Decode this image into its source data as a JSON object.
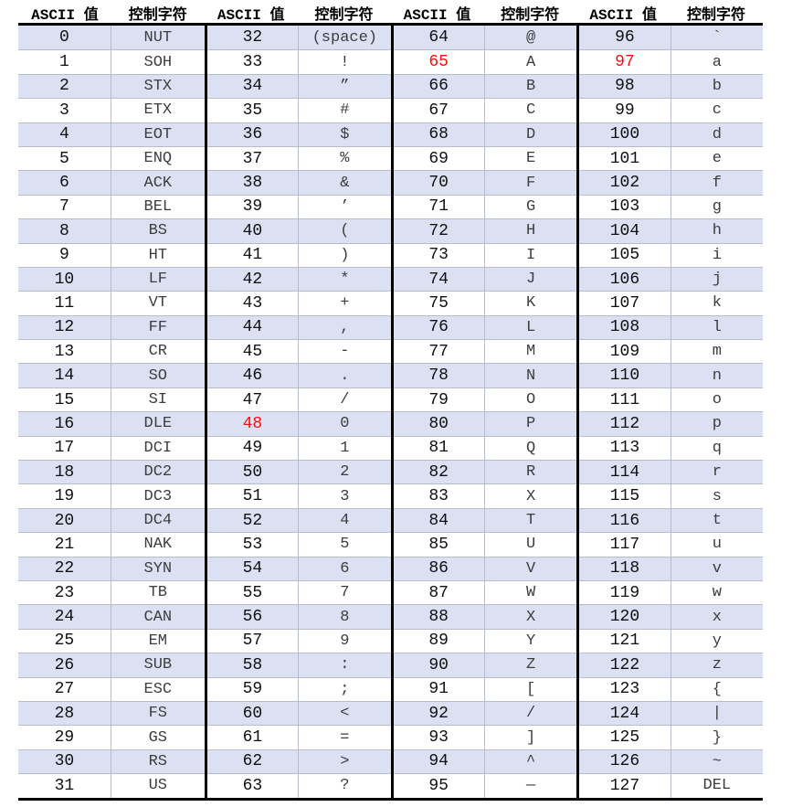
{
  "colors": {
    "red": "#f90f0f",
    "stripe": "#dbe1f3",
    "grid_line": "#b6bcc9",
    "border": "#000000"
  },
  "table": {
    "header": {
      "value_label": "ASCII 值",
      "char_label": "控制字符"
    },
    "groups": [
      {
        "rows": [
          {
            "v": "0",
            "c": "NUT"
          },
          {
            "v": "1",
            "c": "SOH"
          },
          {
            "v": "2",
            "c": "STX"
          },
          {
            "v": "3",
            "c": "ETX"
          },
          {
            "v": "4",
            "c": "EOT"
          },
          {
            "v": "5",
            "c": "ENQ"
          },
          {
            "v": "6",
            "c": "ACK"
          },
          {
            "v": "7",
            "c": "BEL"
          },
          {
            "v": "8",
            "c": "BS"
          },
          {
            "v": "9",
            "c": "HT"
          },
          {
            "v": "10",
            "c": "LF"
          },
          {
            "v": "11",
            "c": "VT"
          },
          {
            "v": "12",
            "c": "FF"
          },
          {
            "v": "13",
            "c": "CR"
          },
          {
            "v": "14",
            "c": "SO"
          },
          {
            "v": "15",
            "c": "SI"
          },
          {
            "v": "16",
            "c": "DLE"
          },
          {
            "v": "17",
            "c": "DCI"
          },
          {
            "v": "18",
            "c": "DC2"
          },
          {
            "v": "19",
            "c": "DC3"
          },
          {
            "v": "20",
            "c": "DC4"
          },
          {
            "v": "21",
            "c": "NAK"
          },
          {
            "v": "22",
            "c": "SYN"
          },
          {
            "v": "23",
            "c": "TB"
          },
          {
            "v": "24",
            "c": "CAN"
          },
          {
            "v": "25",
            "c": "EM"
          },
          {
            "v": "26",
            "c": "SUB"
          },
          {
            "v": "27",
            "c": "ESC"
          },
          {
            "v": "28",
            "c": "FS"
          },
          {
            "v": "29",
            "c": "GS"
          },
          {
            "v": "30",
            "c": "RS"
          },
          {
            "v": "31",
            "c": "US"
          }
        ]
      },
      {
        "rows": [
          {
            "v": "32",
            "c": "(space)"
          },
          {
            "v": "33",
            "c": "!"
          },
          {
            "v": "34",
            "c": "”"
          },
          {
            "v": "35",
            "c": "#"
          },
          {
            "v": "36",
            "c": "$"
          },
          {
            "v": "37",
            "c": "%"
          },
          {
            "v": "38",
            "c": "&"
          },
          {
            "v": "39",
            "c": "’"
          },
          {
            "v": "40",
            "c": "("
          },
          {
            "v": "41",
            "c": ")"
          },
          {
            "v": "42",
            "c": "*"
          },
          {
            "v": "43",
            "c": "+"
          },
          {
            "v": "44",
            "c": ","
          },
          {
            "v": "45",
            "c": "-"
          },
          {
            "v": "46",
            "c": "."
          },
          {
            "v": "47",
            "c": "/"
          },
          {
            "v": "48",
            "c": "0",
            "red": true
          },
          {
            "v": "49",
            "c": "1"
          },
          {
            "v": "50",
            "c": "2"
          },
          {
            "v": "51",
            "c": "3"
          },
          {
            "v": "52",
            "c": "4"
          },
          {
            "v": "53",
            "c": "5"
          },
          {
            "v": "54",
            "c": "6"
          },
          {
            "v": "55",
            "c": "7"
          },
          {
            "v": "56",
            "c": "8"
          },
          {
            "v": "57",
            "c": "9"
          },
          {
            "v": "58",
            "c": ":"
          },
          {
            "v": "59",
            "c": ";"
          },
          {
            "v": "60",
            "c": "<"
          },
          {
            "v": "61",
            "c": "="
          },
          {
            "v": "62",
            "c": ">"
          },
          {
            "v": "63",
            "c": "?"
          }
        ]
      },
      {
        "rows": [
          {
            "v": "64",
            "c": "@"
          },
          {
            "v": "65",
            "c": "A",
            "red": true
          },
          {
            "v": "66",
            "c": "B"
          },
          {
            "v": "67",
            "c": "C"
          },
          {
            "v": "68",
            "c": "D"
          },
          {
            "v": "69",
            "c": "E"
          },
          {
            "v": "70",
            "c": "F"
          },
          {
            "v": "71",
            "c": "G"
          },
          {
            "v": "72",
            "c": "H"
          },
          {
            "v": "73",
            "c": "I"
          },
          {
            "v": "74",
            "c": "J"
          },
          {
            "v": "75",
            "c": "K"
          },
          {
            "v": "76",
            "c": "L"
          },
          {
            "v": "77",
            "c": "M"
          },
          {
            "v": "78",
            "c": "N"
          },
          {
            "v": "79",
            "c": "O"
          },
          {
            "v": "80",
            "c": "P"
          },
          {
            "v": "81",
            "c": "Q"
          },
          {
            "v": "82",
            "c": "R"
          },
          {
            "v": "83",
            "c": "X"
          },
          {
            "v": "84",
            "c": "T"
          },
          {
            "v": "85",
            "c": "U"
          },
          {
            "v": "86",
            "c": "V"
          },
          {
            "v": "87",
            "c": "W"
          },
          {
            "v": "88",
            "c": "X"
          },
          {
            "v": "89",
            "c": "Y"
          },
          {
            "v": "90",
            "c": "Z"
          },
          {
            "v": "91",
            "c": "["
          },
          {
            "v": "92",
            "c": "/"
          },
          {
            "v": "93",
            "c": "]"
          },
          {
            "v": "94",
            "c": "^"
          },
          {
            "v": "95",
            "c": "—"
          }
        ]
      },
      {
        "rows": [
          {
            "v": "96",
            "c": "`"
          },
          {
            "v": "97",
            "c": "a",
            "red": true
          },
          {
            "v": "98",
            "c": "b"
          },
          {
            "v": "99",
            "c": "c"
          },
          {
            "v": "100",
            "c": "d"
          },
          {
            "v": "101",
            "c": "e"
          },
          {
            "v": "102",
            "c": "f"
          },
          {
            "v": "103",
            "c": "g"
          },
          {
            "v": "104",
            "c": "h"
          },
          {
            "v": "105",
            "c": "i"
          },
          {
            "v": "106",
            "c": "j"
          },
          {
            "v": "107",
            "c": "k"
          },
          {
            "v": "108",
            "c": "l"
          },
          {
            "v": "109",
            "c": "m"
          },
          {
            "v": "110",
            "c": "n"
          },
          {
            "v": "111",
            "c": "o"
          },
          {
            "v": "112",
            "c": "p"
          },
          {
            "v": "113",
            "c": "q"
          },
          {
            "v": "114",
            "c": "r"
          },
          {
            "v": "115",
            "c": "s"
          },
          {
            "v": "116",
            "c": "t"
          },
          {
            "v": "117",
            "c": "u"
          },
          {
            "v": "118",
            "c": "v"
          },
          {
            "v": "119",
            "c": "w"
          },
          {
            "v": "120",
            "c": "x"
          },
          {
            "v": "121",
            "c": "y"
          },
          {
            "v": "122",
            "c": "z"
          },
          {
            "v": "123",
            "c": "{"
          },
          {
            "v": "124",
            "c": "|"
          },
          {
            "v": "125",
            "c": "}"
          },
          {
            "v": "126",
            "c": "~"
          },
          {
            "v": "127",
            "c": "DEL"
          }
        ]
      }
    ]
  }
}
